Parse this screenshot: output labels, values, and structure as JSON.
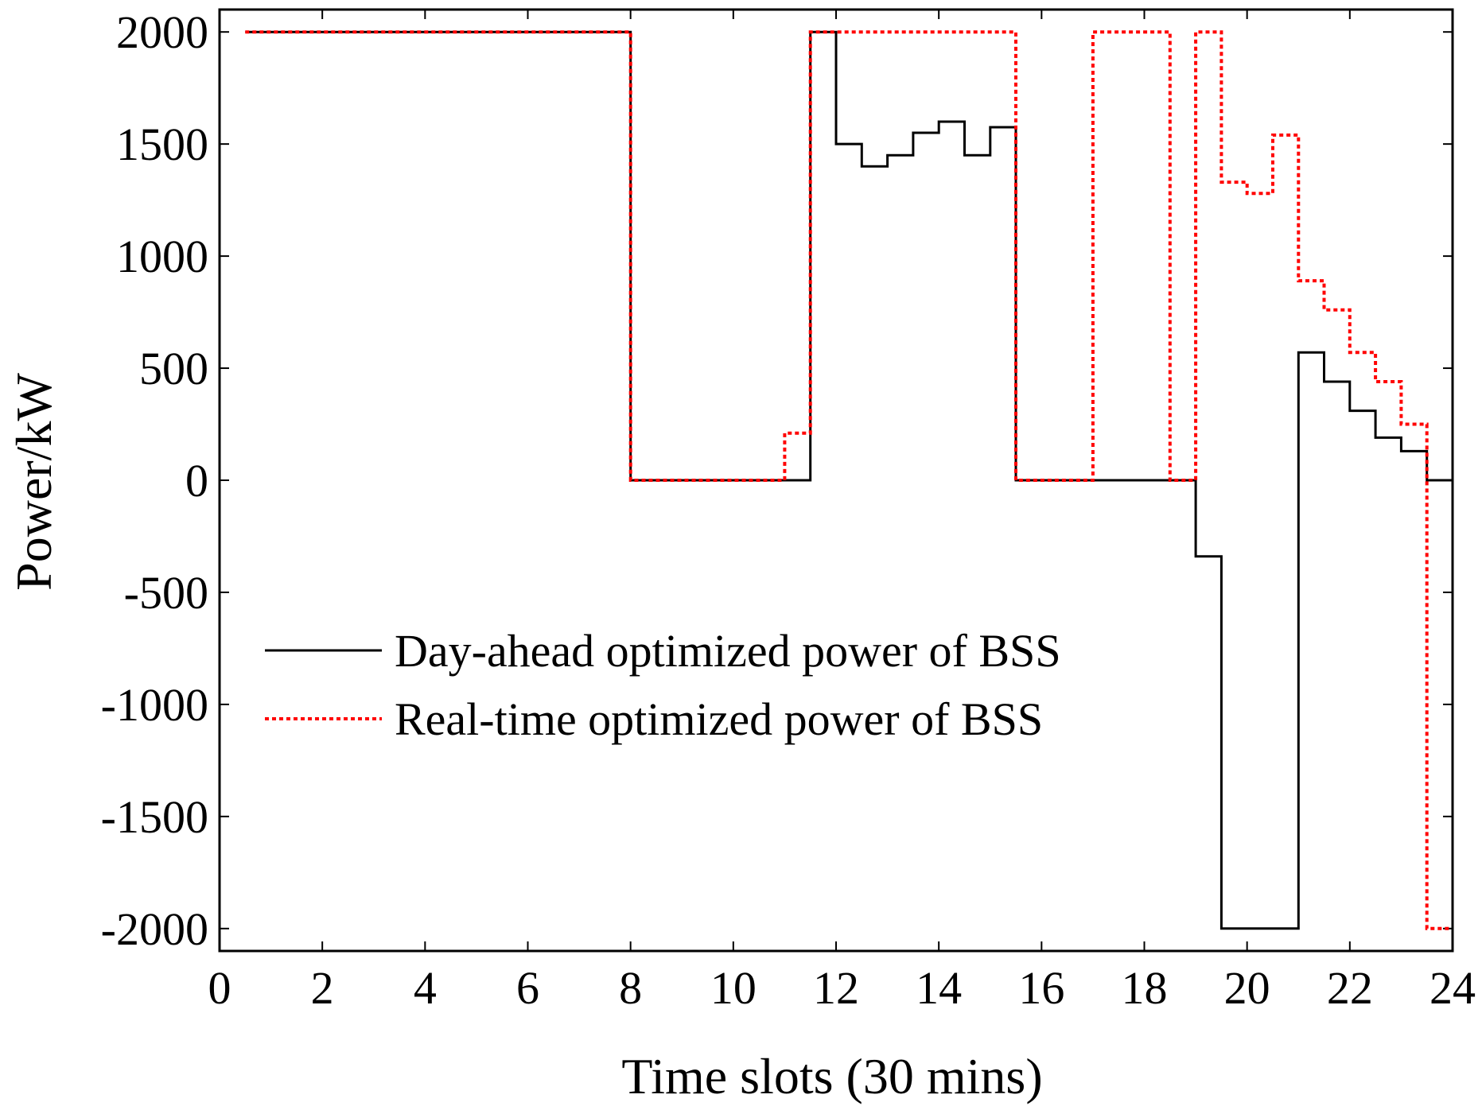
{
  "chart_data": {
    "type": "line",
    "title": "",
    "xlabel": "Time slots (30 mins)",
    "ylabel": "Power/kW",
    "xlim": [
      0,
      24
    ],
    "ylim": [
      -2100,
      2100
    ],
    "x_ticks": [
      0,
      2,
      4,
      6,
      8,
      10,
      12,
      14,
      16,
      18,
      20,
      22,
      24
    ],
    "y_ticks": [
      -2000,
      -1500,
      -1000,
      -500,
      0,
      500,
      1000,
      1500,
      2000
    ],
    "legend_position": "lower-left",
    "series": [
      {
        "name": "Day-ahead optimized power of BSS",
        "color": "#000000",
        "style": "solid",
        "step_starts": [
          0.5,
          1,
          1.5,
          2,
          2.5,
          3,
          3.5,
          4,
          4.5,
          5,
          5.5,
          6,
          6.5,
          7,
          7.5,
          8,
          8.5,
          9,
          9.5,
          10,
          10.5,
          11,
          11.5,
          12,
          12.5,
          13,
          13.5,
          14,
          14.5,
          15,
          15.5,
          16,
          16.5,
          17,
          17.5,
          18,
          18.5,
          19,
          19.5,
          20,
          20.5,
          21,
          21.5,
          22,
          22.5,
          23,
          23.5
        ],
        "values": [
          2000,
          2000,
          2000,
          2000,
          2000,
          2000,
          2000,
          2000,
          2000,
          2000,
          2000,
          2000,
          2000,
          2000,
          2000,
          0,
          0,
          0,
          0,
          0,
          0,
          0,
          2000,
          1500,
          1400,
          1450,
          1550,
          1600,
          1450,
          1575,
          0,
          0,
          0,
          0,
          0,
          0,
          0,
          -340,
          -2000,
          -2000,
          -2000,
          570,
          440,
          310,
          190,
          130,
          0
        ]
      },
      {
        "name": "Real-time optimized power of BSS",
        "color": "#ff0000",
        "style": "dotted",
        "step_starts": [
          0.5,
          1,
          1.5,
          2,
          2.5,
          3,
          3.5,
          4,
          4.5,
          5,
          5.5,
          6,
          6.5,
          7,
          7.5,
          8,
          8.5,
          9,
          9.5,
          10,
          10.5,
          11,
          11.5,
          12,
          12.5,
          13,
          13.5,
          14,
          14.5,
          15,
          15.5,
          16,
          16.5,
          17,
          17.5,
          18,
          18.5,
          19,
          19.5,
          20,
          20.5,
          21,
          21.5,
          22,
          22.5,
          23,
          23.5
        ],
        "values": [
          2000,
          2000,
          2000,
          2000,
          2000,
          2000,
          2000,
          2000,
          2000,
          2000,
          2000,
          2000,
          2000,
          2000,
          2000,
          0,
          0,
          0,
          0,
          0,
          0,
          210,
          2000,
          2000,
          2000,
          2000,
          2000,
          2000,
          2000,
          2000,
          0,
          0,
          0,
          2000,
          2000,
          2000,
          0,
          2000,
          1330,
          1280,
          1540,
          890,
          760,
          570,
          440,
          250,
          -2000
        ]
      }
    ]
  }
}
